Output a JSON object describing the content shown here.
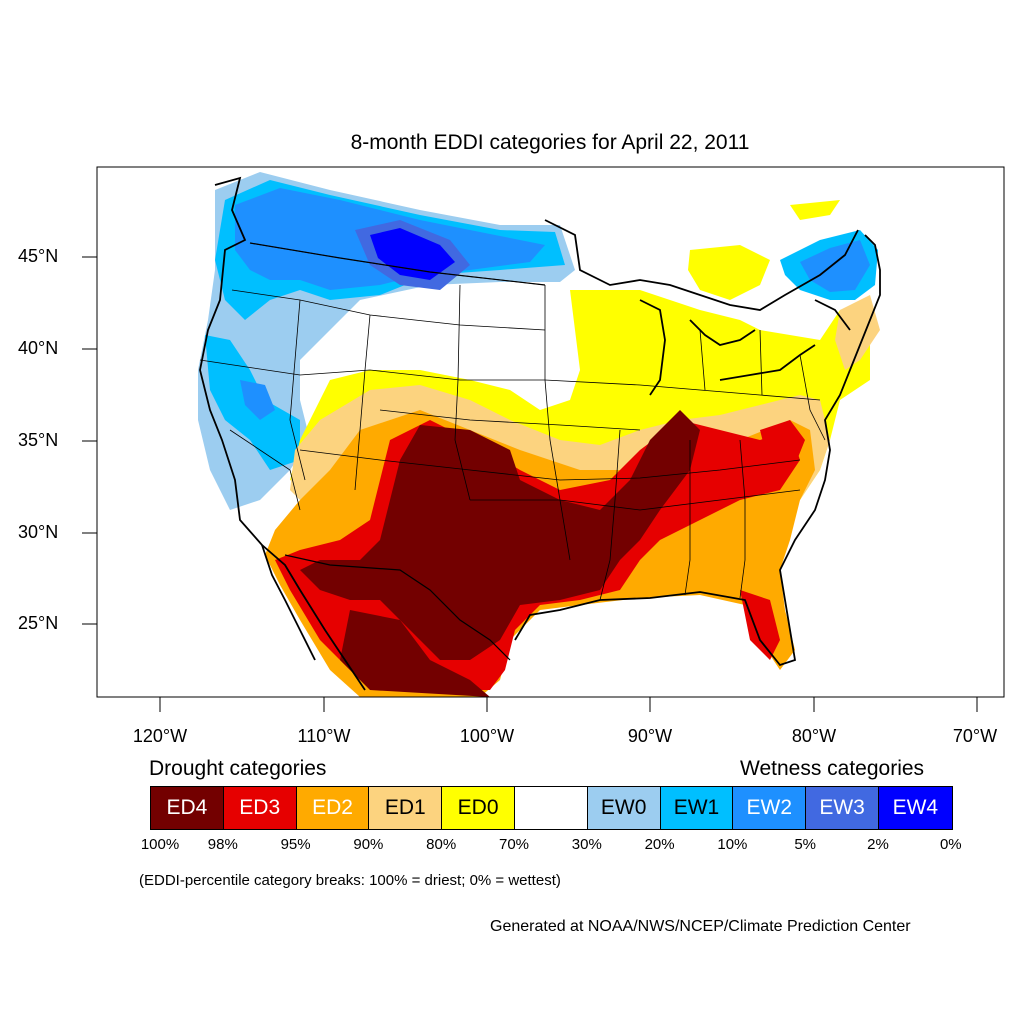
{
  "title": "8-month EDDI categories for April 22, 2011",
  "map": {
    "lat_labels": [
      "45°N",
      "40°N",
      "35°N",
      "30°N",
      "25°N"
    ],
    "lon_labels": [
      "120°W",
      "110°W",
      "100°W",
      "90°W",
      "80°W",
      "70°W"
    ]
  },
  "legend": {
    "drought_heading": "Drought categories",
    "wetness_heading": "Wetness categories",
    "categories": [
      {
        "label": "ED4",
        "color": "#730000",
        "text_color": "#ffffff"
      },
      {
        "label": "ED3",
        "color": "#e60000",
        "text_color": "#ffffff"
      },
      {
        "label": "ED2",
        "color": "#ffaa00",
        "text_color": "#ffffff"
      },
      {
        "label": "ED1",
        "color": "#fcd37f",
        "text_color": "#000000"
      },
      {
        "label": "ED0",
        "color": "#ffff00",
        "text_color": "#000000"
      },
      {
        "label": "",
        "color": "#ffffff",
        "text_color": "#000000"
      },
      {
        "label": "EW0",
        "color": "#9ccdf0",
        "text_color": "#000000"
      },
      {
        "label": "EW1",
        "color": "#00bfff",
        "text_color": "#000000"
      },
      {
        "label": "EW2",
        "color": "#1e90ff",
        "text_color": "#ffffff"
      },
      {
        "label": "EW3",
        "color": "#4169e1",
        "text_color": "#ffffff"
      },
      {
        "label": "EW4",
        "color": "#0000ff",
        "text_color": "#ffffff"
      }
    ],
    "breaks": [
      "100%",
      "98%",
      "95%",
      "90%",
      "80%",
      "70%",
      "30%",
      "20%",
      "10%",
      "5%",
      "2%",
      "0%"
    ]
  },
  "note": "(EDDI-percentile category breaks: 100% = driest; 0% = wettest)",
  "credit": "Generated at NOAA/NWS/NCEP/Climate Prediction Center"
}
